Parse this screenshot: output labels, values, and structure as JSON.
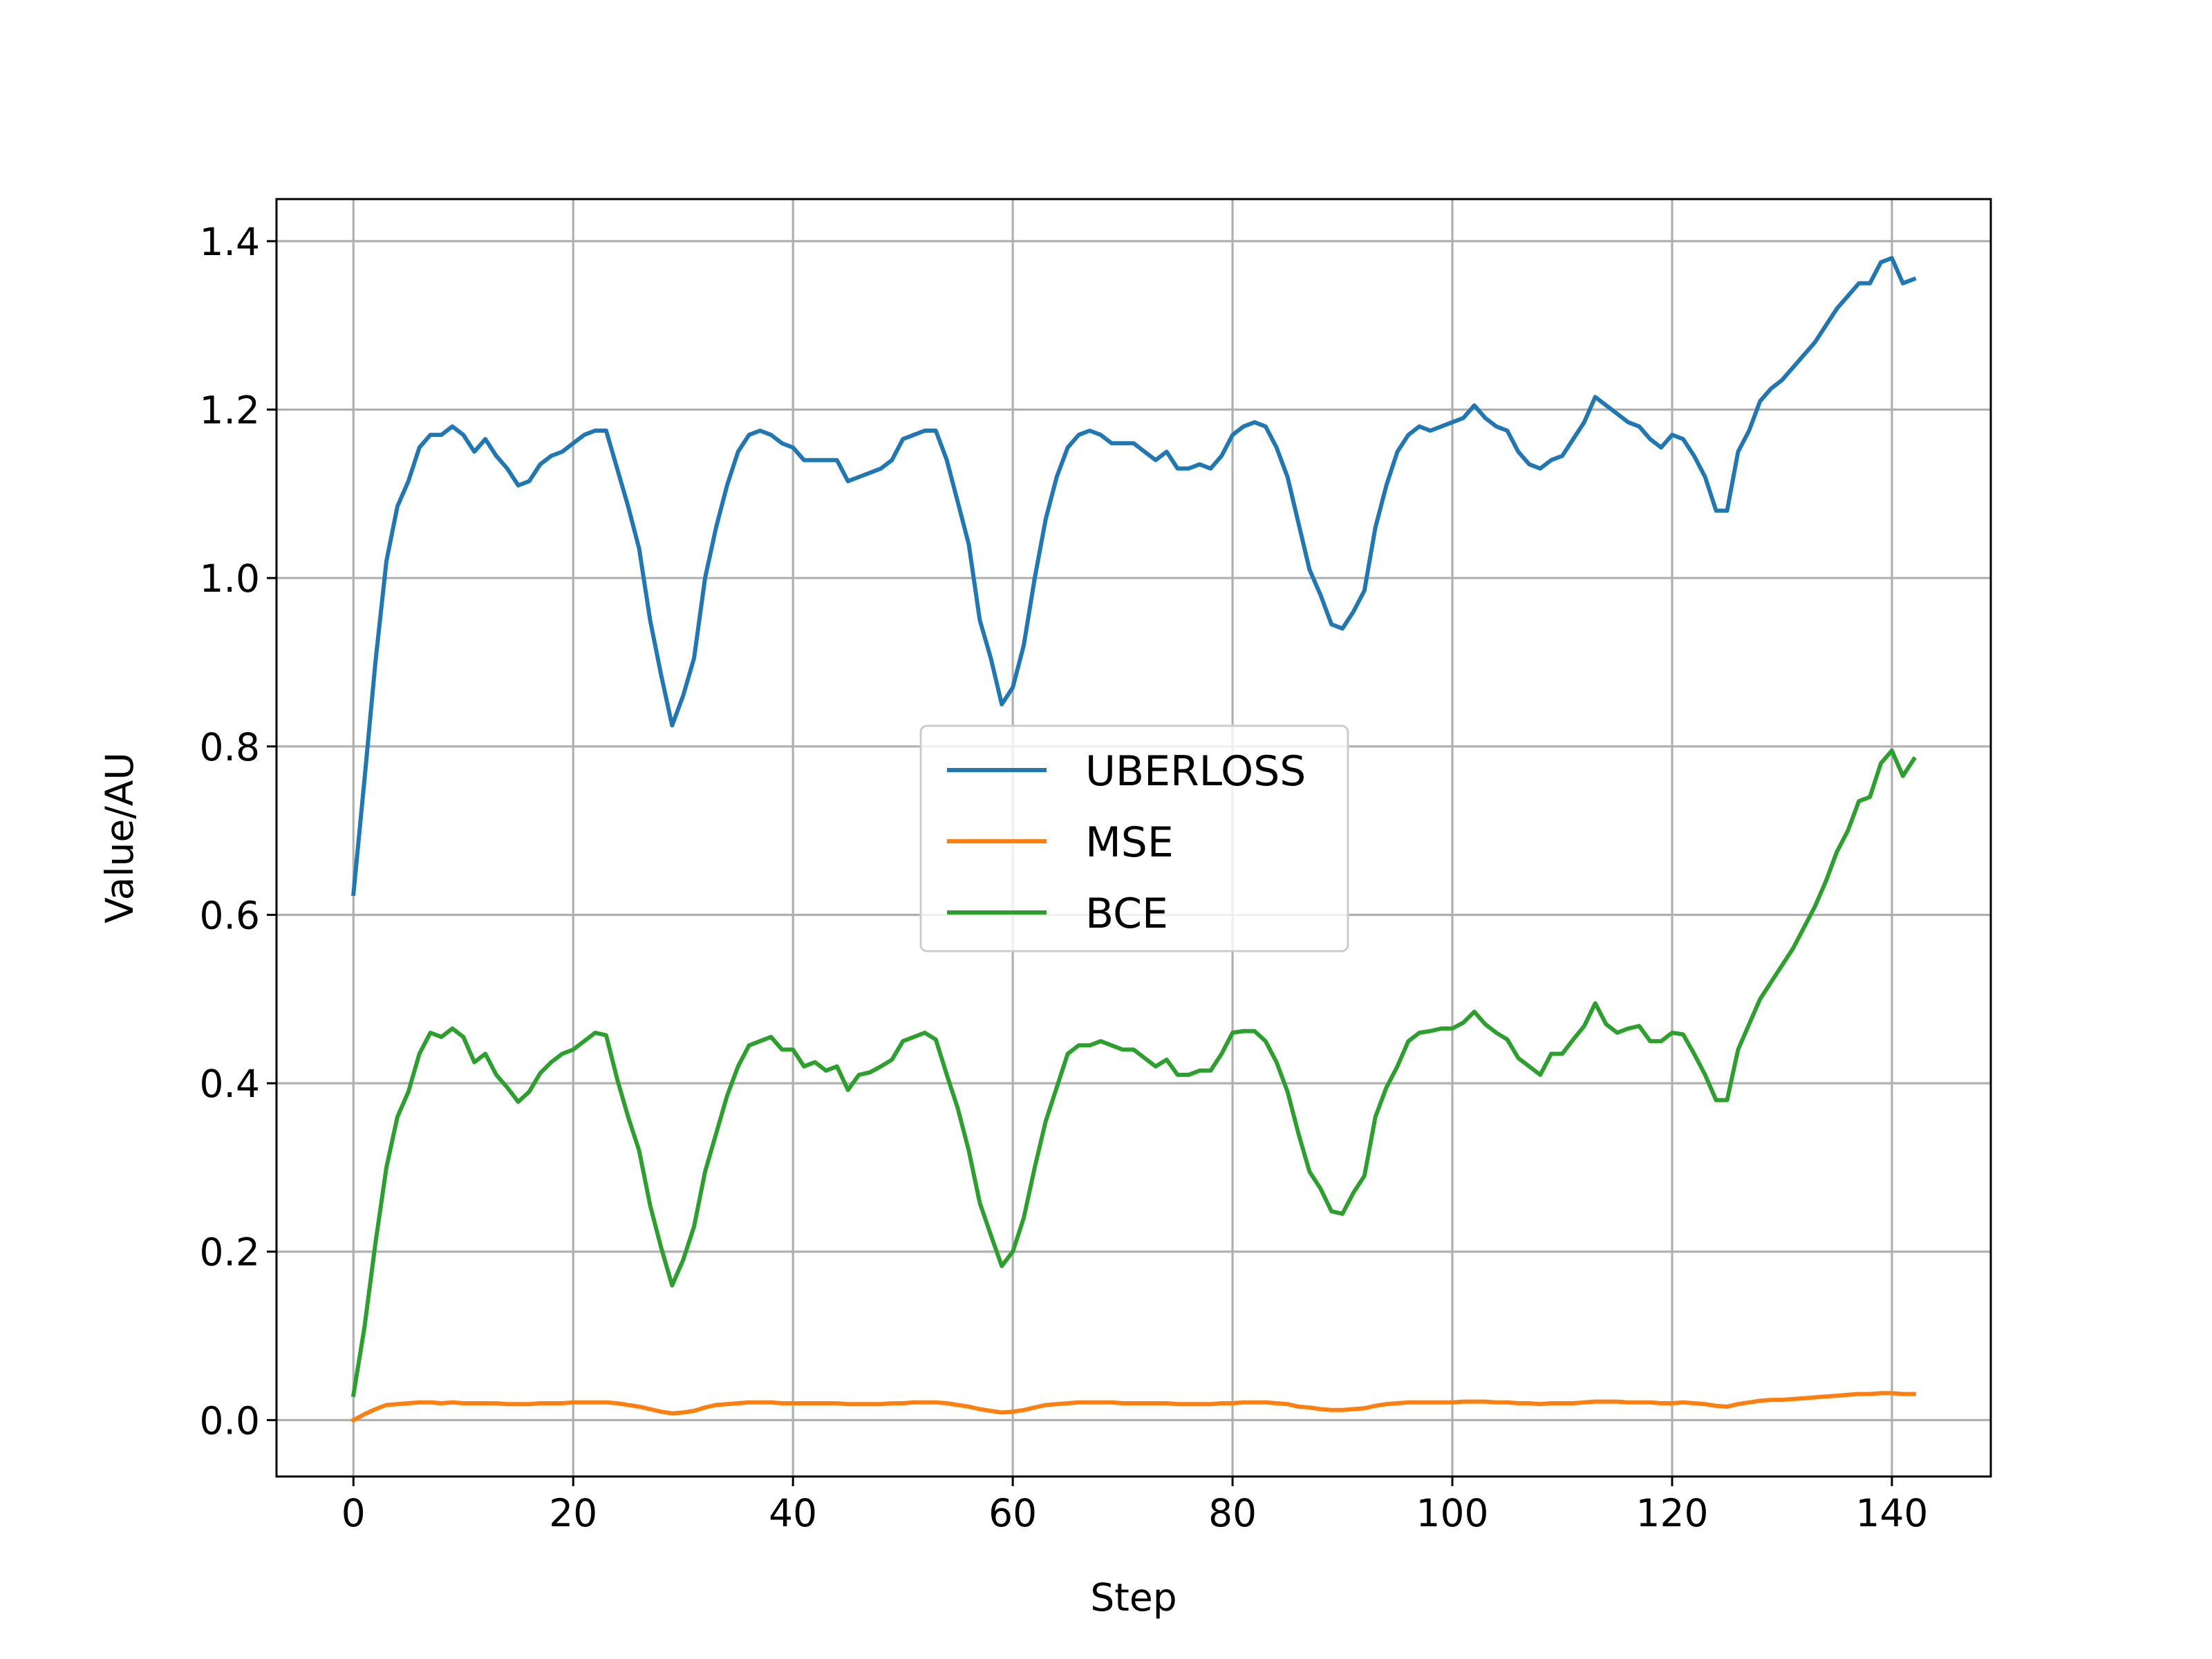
{
  "chart_data": {
    "type": "line",
    "xlabel": "Step",
    "ylabel": "Value/AU",
    "xlim": [
      -7,
      149
    ],
    "ylim": [
      -0.067,
      1.45
    ],
    "xticks": [
      0,
      20,
      40,
      60,
      80,
      100,
      120,
      140
    ],
    "yticks": [
      0.0,
      0.2,
      0.4,
      0.6,
      0.8,
      1.0,
      1.2,
      1.4
    ],
    "xtick_labels": [
      "0",
      "20",
      "40",
      "60",
      "80",
      "100",
      "120",
      "140"
    ],
    "ytick_labels": [
      "0.0",
      "0.2",
      "0.4",
      "0.6",
      "0.8",
      "1.0",
      "1.2",
      "1.4"
    ],
    "grid": true,
    "legend_position": "center",
    "x": [
      0,
      1,
      2,
      3,
      4,
      5,
      6,
      7,
      8,
      9,
      10,
      11,
      12,
      13,
      14,
      15,
      16,
      17,
      18,
      19,
      20,
      21,
      22,
      23,
      24,
      25,
      26,
      27,
      28,
      29,
      30,
      31,
      32,
      33,
      34,
      35,
      36,
      37,
      38,
      39,
      40,
      41,
      42,
      43,
      44,
      45,
      46,
      47,
      48,
      49,
      50,
      51,
      52,
      53,
      54,
      55,
      56,
      57,
      58,
      59,
      60,
      61,
      62,
      63,
      64,
      65,
      66,
      67,
      68,
      69,
      70,
      71,
      72,
      73,
      74,
      75,
      76,
      77,
      78,
      79,
      80,
      81,
      82,
      83,
      84,
      85,
      86,
      87,
      88,
      89,
      90,
      91,
      92,
      93,
      94,
      95,
      96,
      97,
      98,
      99,
      100,
      101,
      102,
      103,
      104,
      105,
      106,
      107,
      108,
      109,
      110,
      111,
      112,
      113,
      114,
      115,
      116,
      117,
      118,
      119,
      120,
      121,
      122,
      123,
      124,
      125,
      126,
      127,
      128,
      129,
      130,
      131,
      132,
      133,
      134,
      135,
      136,
      137,
      138,
      139,
      140,
      141,
      142
    ],
    "series": [
      {
        "name": "UBERLOSS",
        "color": "#1f77b4",
        "values": [
          0.625,
          0.76,
          0.9,
          1.02,
          1.085,
          1.115,
          1.155,
          1.17,
          1.17,
          1.18,
          1.17,
          1.15,
          1.165,
          1.145,
          1.13,
          1.11,
          1.115,
          1.135,
          1.145,
          1.15,
          1.16,
          1.17,
          1.175,
          1.175,
          1.13,
          1.085,
          1.035,
          0.95,
          0.885,
          0.825,
          0.86,
          0.905,
          1.0,
          1.06,
          1.11,
          1.15,
          1.17,
          1.175,
          1.17,
          1.16,
          1.155,
          1.14,
          1.14,
          1.14,
          1.14,
          1.115,
          1.12,
          1.125,
          1.13,
          1.14,
          1.165,
          1.17,
          1.175,
          1.175,
          1.14,
          1.09,
          1.04,
          0.95,
          0.905,
          0.85,
          0.87,
          0.92,
          1.0,
          1.07,
          1.12,
          1.155,
          1.17,
          1.175,
          1.17,
          1.16,
          1.16,
          1.16,
          1.15,
          1.14,
          1.15,
          1.13,
          1.13,
          1.135,
          1.13,
          1.145,
          1.17,
          1.18,
          1.185,
          1.18,
          1.155,
          1.12,
          1.065,
          1.01,
          0.98,
          0.945,
          0.94,
          0.96,
          0.985,
          1.06,
          1.11,
          1.15,
          1.17,
          1.18,
          1.175,
          1.18,
          1.185,
          1.19,
          1.205,
          1.19,
          1.18,
          1.175,
          1.15,
          1.135,
          1.13,
          1.14,
          1.145,
          1.165,
          1.185,
          1.215,
          1.205,
          1.195,
          1.185,
          1.18,
          1.165,
          1.155,
          1.17,
          1.165,
          1.145,
          1.12,
          1.08,
          1.08,
          1.15,
          1.175,
          1.21,
          1.225,
          1.235,
          1.25,
          1.265,
          1.28,
          1.3,
          1.32,
          1.335,
          1.35,
          1.35,
          1.375,
          1.38,
          1.35,
          1.355
        ]
      },
      {
        "name": "MSE",
        "color": "#ff7f0e",
        "values": [
          0.0,
          0.007,
          0.013,
          0.018,
          0.019,
          0.02,
          0.021,
          0.021,
          0.02,
          0.021,
          0.02,
          0.02,
          0.02,
          0.02,
          0.019,
          0.019,
          0.019,
          0.02,
          0.02,
          0.02,
          0.021,
          0.021,
          0.021,
          0.021,
          0.02,
          0.018,
          0.016,
          0.013,
          0.01,
          0.008,
          0.009,
          0.011,
          0.015,
          0.018,
          0.019,
          0.02,
          0.021,
          0.021,
          0.021,
          0.02,
          0.02,
          0.02,
          0.02,
          0.02,
          0.02,
          0.019,
          0.019,
          0.019,
          0.019,
          0.02,
          0.02,
          0.021,
          0.021,
          0.021,
          0.02,
          0.018,
          0.016,
          0.013,
          0.011,
          0.009,
          0.01,
          0.012,
          0.015,
          0.018,
          0.019,
          0.02,
          0.021,
          0.021,
          0.021,
          0.021,
          0.02,
          0.02,
          0.02,
          0.02,
          0.02,
          0.019,
          0.019,
          0.019,
          0.019,
          0.02,
          0.02,
          0.021,
          0.021,
          0.021,
          0.02,
          0.019,
          0.016,
          0.015,
          0.013,
          0.012,
          0.012,
          0.013,
          0.014,
          0.017,
          0.019,
          0.02,
          0.021,
          0.021,
          0.021,
          0.021,
          0.021,
          0.022,
          0.022,
          0.022,
          0.021,
          0.021,
          0.02,
          0.02,
          0.019,
          0.02,
          0.02,
          0.02,
          0.021,
          0.022,
          0.022,
          0.022,
          0.021,
          0.021,
          0.021,
          0.02,
          0.02,
          0.021,
          0.02,
          0.019,
          0.017,
          0.016,
          0.019,
          0.021,
          0.023,
          0.024,
          0.024,
          0.025,
          0.026,
          0.027,
          0.028,
          0.029,
          0.03,
          0.031,
          0.031,
          0.032,
          0.032,
          0.031,
          0.031
        ]
      },
      {
        "name": "BCE",
        "color": "#2ca02c",
        "values": [
          0.03,
          0.11,
          0.21,
          0.3,
          0.36,
          0.39,
          0.435,
          0.46,
          0.455,
          0.465,
          0.455,
          0.425,
          0.435,
          0.41,
          0.395,
          0.378,
          0.39,
          0.412,
          0.425,
          0.435,
          0.44,
          0.45,
          0.46,
          0.457,
          0.405,
          0.36,
          0.32,
          0.255,
          0.205,
          0.16,
          0.19,
          0.23,
          0.295,
          0.34,
          0.385,
          0.42,
          0.445,
          0.45,
          0.455,
          0.44,
          0.44,
          0.42,
          0.425,
          0.415,
          0.42,
          0.392,
          0.41,
          0.413,
          0.42,
          0.428,
          0.45,
          0.455,
          0.46,
          0.452,
          0.41,
          0.37,
          0.32,
          0.258,
          0.22,
          0.183,
          0.2,
          0.24,
          0.3,
          0.355,
          0.395,
          0.435,
          0.445,
          0.445,
          0.45,
          0.445,
          0.44,
          0.44,
          0.43,
          0.42,
          0.428,
          0.41,
          0.41,
          0.415,
          0.415,
          0.435,
          0.46,
          0.462,
          0.462,
          0.45,
          0.425,
          0.39,
          0.34,
          0.295,
          0.275,
          0.248,
          0.245,
          0.27,
          0.29,
          0.36,
          0.395,
          0.42,
          0.45,
          0.46,
          0.462,
          0.465,
          0.465,
          0.472,
          0.485,
          0.47,
          0.46,
          0.452,
          0.43,
          0.42,
          0.41,
          0.435,
          0.435,
          0.452,
          0.468,
          0.495,
          0.47,
          0.46,
          0.465,
          0.468,
          0.45,
          0.45,
          0.46,
          0.458,
          0.435,
          0.41,
          0.38,
          0.38,
          0.44,
          0.47,
          0.5,
          0.52,
          0.54,
          0.56,
          0.585,
          0.61,
          0.64,
          0.675,
          0.7,
          0.735,
          0.74,
          0.78,
          0.795,
          0.765,
          0.785
        ]
      }
    ]
  }
}
